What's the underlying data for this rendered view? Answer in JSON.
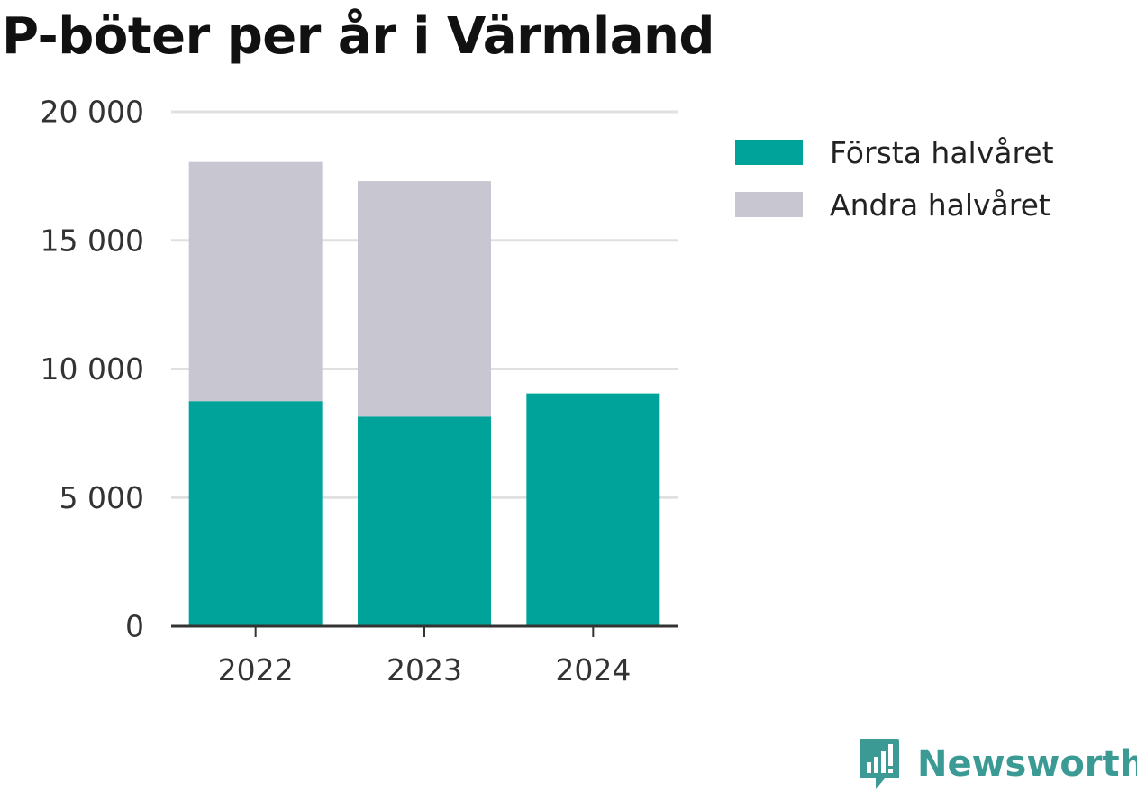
{
  "title": "P-böter per år i Värmland",
  "brand": {
    "name": "Newsworthy",
    "icon": "newsworthy-logo-icon",
    "color": "#3b9a94"
  },
  "chart_data": {
    "type": "bar",
    "stacked": true,
    "title": "P-böter per år i Värmland",
    "xlabel": "",
    "ylabel": "",
    "categories": [
      "2022",
      "2023",
      "2024"
    ],
    "series": [
      {
        "name": "Första halvåret",
        "color": "#00a39a",
        "values": [
          8750,
          8150,
          9050
        ]
      },
      {
        "name": "Andra halvåret",
        "color": "#c8c7d1",
        "values": [
          9300,
          9150,
          null
        ]
      }
    ],
    "ylim": [
      0,
      20000
    ],
    "yticks": [
      0,
      5000,
      10000,
      15000,
      20000
    ],
    "ytick_labels": [
      "0",
      "5 000",
      "10 000",
      "15 000",
      "20 000"
    ],
    "grid": true,
    "legend": "right"
  }
}
